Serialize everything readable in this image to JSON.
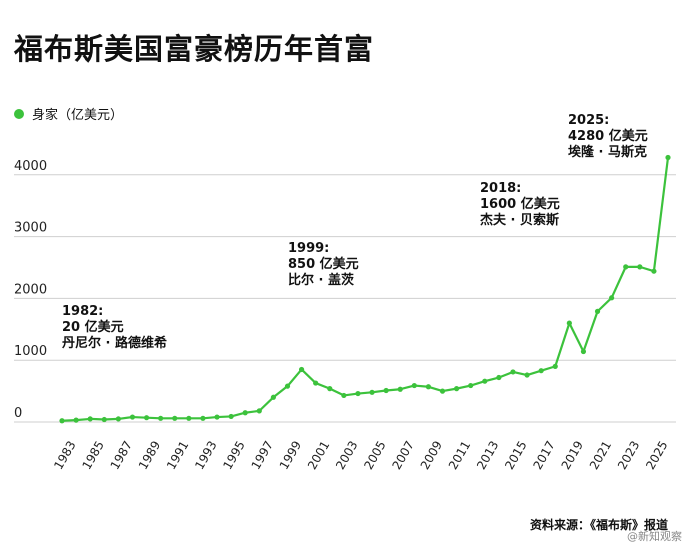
{
  "header": {
    "title": "福布斯美国富豪榜历年首富"
  },
  "legend": {
    "label": "身家（亿美元）",
    "color": "#3cc23c"
  },
  "footer": {
    "source": "资料来源：《福布斯》报道",
    "watermark": "@新知观察"
  },
  "chart_data": {
    "type": "line",
    "title": "福布斯美国富豪榜历年首富",
    "ylabel": "身家（亿美元）",
    "ylim": [
      0,
      4500
    ],
    "yticks": [
      0,
      1000,
      2000,
      3000,
      4000
    ],
    "x_tick_labels": [
      "1983",
      "1985",
      "1987",
      "1989",
      "1991",
      "1993",
      "1995",
      "1997",
      "1999",
      "2001",
      "2003",
      "2005",
      "2007",
      "2009",
      "2011",
      "2013",
      "2015",
      "2017",
      "2019",
      "2021",
      "2023",
      "2025"
    ],
    "grid": true,
    "legend": "top-left",
    "color": "#3cc23c",
    "series": [
      {
        "name": "身家（亿美元）",
        "x": [
          1982,
          1983,
          1984,
          1985,
          1986,
          1987,
          1988,
          1989,
          1990,
          1991,
          1992,
          1993,
          1994,
          1995,
          1996,
          1997,
          1998,
          1999,
          2000,
          2001,
          2002,
          2003,
          2004,
          2005,
          2006,
          2007,
          2008,
          2009,
          2010,
          2011,
          2012,
          2013,
          2014,
          2015,
          2016,
          2017,
          2018,
          2019,
          2020,
          2021,
          2022,
          2023,
          2024,
          2025
        ],
        "values": [
          20,
          30,
          50,
          40,
          50,
          80,
          70,
          60,
          60,
          60,
          60,
          80,
          90,
          150,
          180,
          400,
          580,
          850,
          630,
          540,
          430,
          460,
          480,
          510,
          530,
          590,
          570,
          500,
          540,
          590,
          660,
          720,
          810,
          760,
          830,
          900,
          1600,
          1140,
          1790,
          2010,
          2510,
          2510,
          2440,
          4280
        ]
      }
    ],
    "annotations": [
      {
        "x": 1982,
        "year": "1982:",
        "value": "20 亿美元",
        "name": "丹尼尔 · 路德维希"
      },
      {
        "x": 1999,
        "year": "1999:",
        "value": "850 亿美元",
        "name": "比尔 · 盖茨"
      },
      {
        "x": 2018,
        "year": "2018:",
        "value": "1600 亿美元",
        "name": "杰夫 · 贝索斯"
      },
      {
        "x": 2025,
        "year": "2025:",
        "value": "4280 亿美元",
        "name": "埃隆 · 马斯克"
      }
    ]
  }
}
